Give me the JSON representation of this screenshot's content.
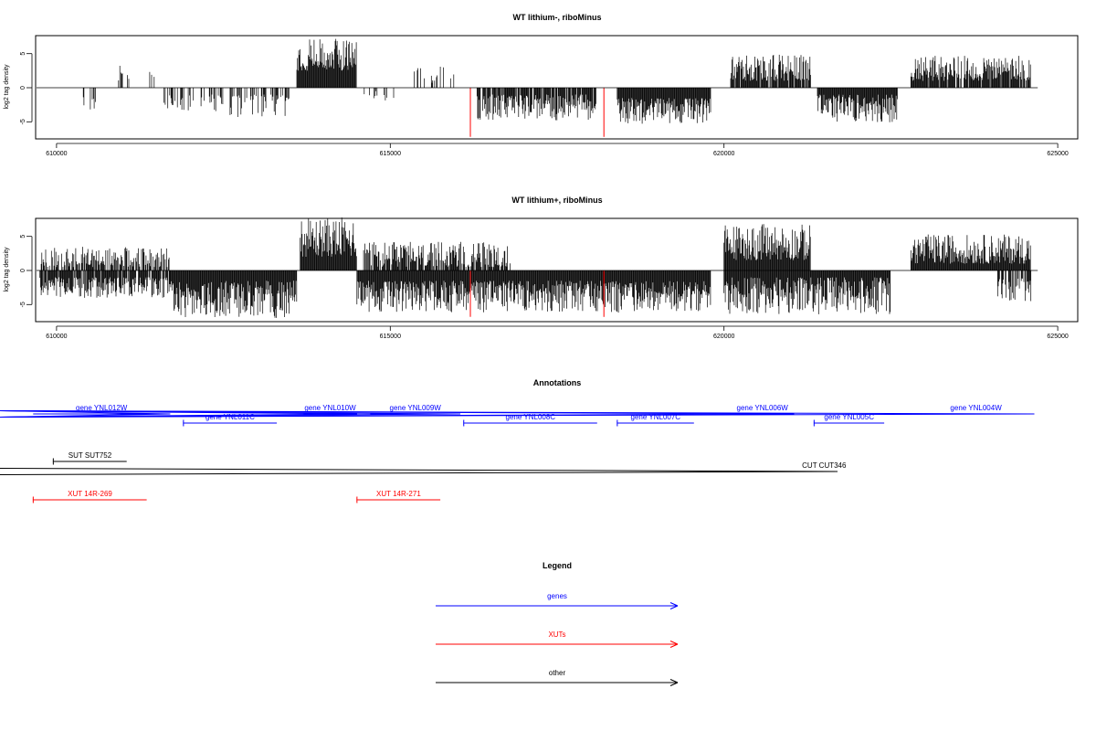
{
  "chart_data": [
    {
      "type": "bar",
      "title": "WT lithium-, riboMinus",
      "xlabel": "",
      "ylabel": "log2 tag density",
      "xlim": [
        609700,
        625300
      ],
      "ylim": [
        -7.5,
        7.5
      ],
      "x_ticks": [
        "610000",
        "615000",
        "620000",
        "625000"
      ],
      "y_ticks": [
        "5",
        "0",
        "-5"
      ],
      "baseline_range": [
        609700,
        624700
      ],
      "highlighted_bars": [
        {
          "x": 616200,
          "value": -7.2,
          "color": "#ff0000"
        },
        {
          "x": 618200,
          "value": -7.2,
          "color": "#ff0000"
        }
      ],
      "regions": [
        {
          "start": 610400,
          "end": 610600,
          "density": 0.3,
          "sign": -1,
          "min": 1.2,
          "max": 3.4
        },
        {
          "start": 610900,
          "end": 611100,
          "density": 0.3,
          "sign": 1,
          "min": 1.0,
          "max": 3.6
        },
        {
          "start": 611300,
          "end": 611500,
          "density": 0.2,
          "sign": 1,
          "min": 1.0,
          "max": 2.5
        },
        {
          "start": 611600,
          "end": 612500,
          "density": 0.4,
          "sign": -1,
          "min": 1.0,
          "max": 3.5
        },
        {
          "start": 612600,
          "end": 613500,
          "density": 0.45,
          "sign": -1,
          "min": 1.0,
          "max": 4.4
        },
        {
          "start": 613600,
          "end": 614500,
          "density": 1.0,
          "sign": 1,
          "min": 2.5,
          "max": 7.3
        },
        {
          "start": 614600,
          "end": 615100,
          "density": 0.1,
          "sign": -1,
          "min": 0.5,
          "max": 2.0
        },
        {
          "start": 615300,
          "end": 616000,
          "density": 0.25,
          "sign": 1,
          "min": 0.5,
          "max": 3.4
        },
        {
          "start": 616300,
          "end": 618100,
          "density": 0.9,
          "sign": -1,
          "min": 1.0,
          "max": 4.8
        },
        {
          "start": 618400,
          "end": 619800,
          "density": 1.0,
          "sign": -1,
          "min": 1.5,
          "max": 5.3
        },
        {
          "start": 620100,
          "end": 621300,
          "density": 0.9,
          "sign": 1,
          "min": 1.0,
          "max": 4.9
        },
        {
          "start": 621400,
          "end": 622600,
          "density": 1.0,
          "sign": -1,
          "min": 1.0,
          "max": 5.2
        },
        {
          "start": 622800,
          "end": 624600,
          "density": 0.9,
          "sign": 1,
          "min": 1.0,
          "max": 4.7
        }
      ]
    },
    {
      "type": "bar",
      "title": "WT lithium+, riboMinus",
      "xlabel": "",
      "ylabel": "log2 tag density",
      "xlim": [
        609700,
        625300
      ],
      "ylim": [
        -7.5,
        7.5
      ],
      "x_ticks": [
        "610000",
        "615000",
        "620000",
        "625000"
      ],
      "y_ticks": [
        "5",
        "0",
        "-5"
      ],
      "baseline_range": [
        609700,
        624700
      ],
      "highlighted_bars": [
        {
          "x": 616200,
          "value": -6.8,
          "color": "#ff0000"
        },
        {
          "x": 618200,
          "value": -6.8,
          "color": "#ff0000"
        }
      ],
      "regions": [
        {
          "start": 609750,
          "end": 611700,
          "density": 0.9,
          "sign": -1,
          "min": 1.0,
          "max": 4.0
        },
        {
          "start": 609750,
          "end": 611700,
          "density": 0.6,
          "sign": 1,
          "min": 0.5,
          "max": 3.5
        },
        {
          "start": 611700,
          "end": 613600,
          "density": 1.0,
          "sign": -1,
          "min": 1.5,
          "max": 7.0
        },
        {
          "start": 613650,
          "end": 614500,
          "density": 1.0,
          "sign": 1,
          "min": 2.0,
          "max": 7.8
        },
        {
          "start": 614500,
          "end": 619800,
          "density": 1.0,
          "sign": -1,
          "min": 1.5,
          "max": 6.2
        },
        {
          "start": 614600,
          "end": 616800,
          "density": 0.8,
          "sign": 1,
          "min": 0.5,
          "max": 4.2
        },
        {
          "start": 620000,
          "end": 621300,
          "density": 1.0,
          "sign": 1,
          "min": 1.5,
          "max": 6.8
        },
        {
          "start": 620000,
          "end": 622500,
          "density": 1.0,
          "sign": -1,
          "min": 1.0,
          "max": 6.5
        },
        {
          "start": 622800,
          "end": 624600,
          "density": 1.0,
          "sign": 1,
          "min": 1.0,
          "max": 5.3
        },
        {
          "start": 624100,
          "end": 624600,
          "density": 0.8,
          "sign": -1,
          "min": 1.0,
          "max": 4.6
        }
      ]
    }
  ],
  "annotations": {
    "title": "Annotations",
    "items": [
      {
        "label": "gene YNL012W",
        "start": 609650,
        "end": 611700,
        "strand": "+",
        "color": "#0000ff",
        "row": 0
      },
      {
        "label": "gene YNL011C",
        "start": 611900,
        "end": 613300,
        "strand": "-",
        "color": "#0000ff",
        "row": 1
      },
      {
        "label": "gene YNL010W",
        "start": 613700,
        "end": 614500,
        "strand": "+",
        "color": "#0000ff",
        "row": 0
      },
      {
        "label": "gene YNL009W",
        "start": 614700,
        "end": 616050,
        "strand": "+",
        "color": "#0000ff",
        "row": 0
      },
      {
        "label": "gene YNL008C",
        "start": 616100,
        "end": 618100,
        "strand": "-",
        "color": "#0000ff",
        "row": 1
      },
      {
        "label": "gene YNL007C",
        "start": 618400,
        "end": 619550,
        "strand": "-",
        "color": "#0000ff",
        "row": 1
      },
      {
        "label": "gene YNL006W",
        "start": 620100,
        "end": 621050,
        "strand": "+",
        "color": "#0000ff",
        "row": 0
      },
      {
        "label": "gene YNL005C",
        "start": 621350,
        "end": 622400,
        "strand": "-",
        "color": "#0000ff",
        "row": 1
      },
      {
        "label": "gene YNL004W",
        "start": 622900,
        "end": 624650,
        "strand": "+",
        "color": "#0000ff",
        "row": 0
      },
      {
        "label": "SUT SUT752",
        "start": 609950,
        "end": 611050,
        "strand": "-",
        "color": "#000000",
        "row": 2
      },
      {
        "label": "CUT CUT346",
        "start": 621300,
        "end": 621700,
        "strand": "+",
        "color": "#000000",
        "row": 3
      },
      {
        "label": "XUT 14R-269",
        "start": 609650,
        "end": 611350,
        "strand": "-",
        "color": "#ff0000",
        "row": 4
      },
      {
        "label": "XUT 14R-271",
        "start": 614500,
        "end": 615750,
        "strand": "-",
        "color": "#ff0000",
        "row": 4
      }
    ]
  },
  "legend": {
    "title": "Legend",
    "items": [
      {
        "label": "genes",
        "color": "#0000ff"
      },
      {
        "label": "XUTs",
        "color": "#ff0000"
      },
      {
        "label": "other",
        "color": "#000000"
      }
    ]
  }
}
